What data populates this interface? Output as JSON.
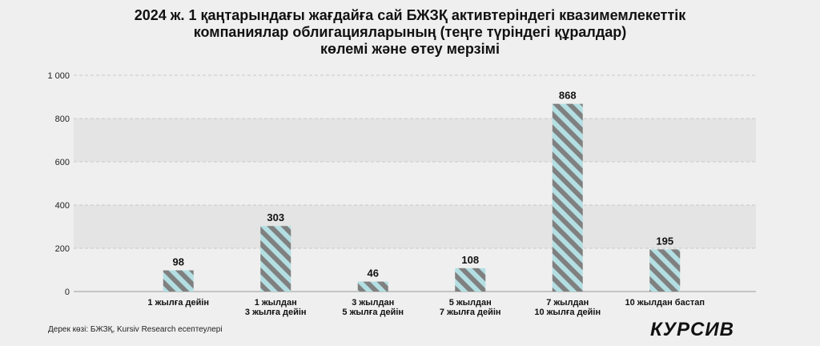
{
  "title_lines": [
    "2024 ж. 1 қаңтарындағы жағдайға сай БЖЗҚ активтеріндегі квазимемлекеттік",
    "компаниялар облигацияларының (теңге түріндегі құралдар)",
    "көлемі және өтеу мерзімі"
  ],
  "source": "Дерек көзі: БЖЗҚ, Kursiv Research есептеулері",
  "logo": "КУРСИВ",
  "chart_data": {
    "type": "bar",
    "categories": [
      [
        "1 жылға дейін"
      ],
      [
        "1 жылдан",
        "3 жылға дейін"
      ],
      [
        "3 жылдан",
        "5 жылға дейін"
      ],
      [
        "5 жылдан",
        "7 жылға дейін"
      ],
      [
        "7 жылдан",
        "10 жылға дейін"
      ],
      [
        "10 жылдан бастап"
      ]
    ],
    "values": [
      98,
      303,
      46,
      108,
      868,
      195
    ],
    "ylim": [
      0,
      1000
    ],
    "yticks": [
      0,
      200,
      400,
      600,
      800,
      1000
    ],
    "ytick_labels": [
      "0",
      "200",
      "400",
      "600",
      "800",
      "1 000"
    ],
    "grid": true,
    "bar_colors": {
      "stripe_a": "#b3dfe3",
      "stripe_b": "#808080"
    },
    "band_color": "#e4e4e4"
  }
}
